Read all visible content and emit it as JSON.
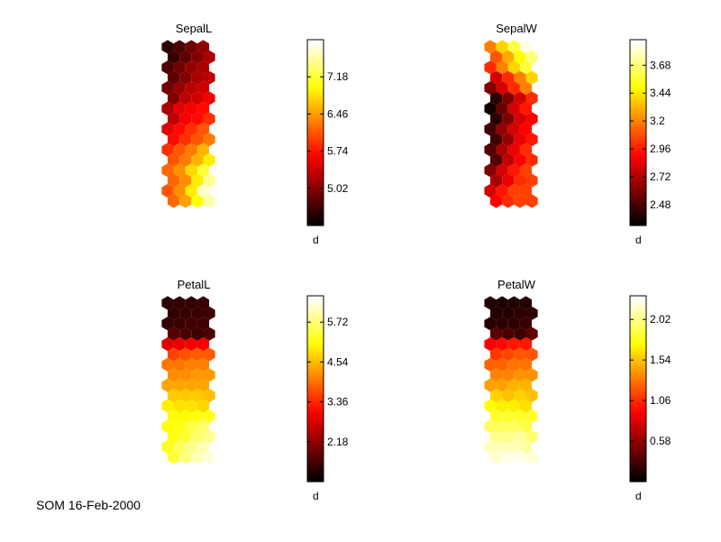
{
  "footer_text": "SOM 16-Feb-2000",
  "chart_data": [
    {
      "type": "heatmap",
      "title": "SepalL",
      "colormap": "hot",
      "grid": {
        "rows": 16,
        "cols": 4,
        "lattice": "hexagonal"
      },
      "colorbar": {
        "label": "d",
        "range": [
          4.3,
          7.9
        ],
        "ticks": [
          5.02,
          5.74,
          6.46,
          7.18
        ]
      },
      "values": [
        [
          4.55,
          4.7,
          4.9,
          5.1
        ],
        [
          4.6,
          4.8,
          5.0,
          5.2
        ],
        [
          4.7,
          4.9,
          5.1,
          5.2
        ],
        [
          4.8,
          5.0,
          5.2,
          5.3
        ],
        [
          4.9,
          5.1,
          5.3,
          5.4
        ],
        [
          5.0,
          5.3,
          5.4,
          5.6
        ],
        [
          5.2,
          5.5,
          5.6,
          5.7
        ],
        [
          5.3,
          5.6,
          5.7,
          5.9
        ],
        [
          5.5,
          5.7,
          5.9,
          6.1
        ],
        [
          5.7,
          5.9,
          6.1,
          6.3
        ],
        [
          5.9,
          6.1,
          6.3,
          6.6
        ],
        [
          6.1,
          6.3,
          6.6,
          6.9
        ],
        [
          6.2,
          6.4,
          6.8,
          7.2
        ],
        [
          6.2,
          6.4,
          6.9,
          7.5
        ],
        [
          6.1,
          6.4,
          6.9,
          7.7
        ],
        [
          6.2,
          6.5,
          7.0,
          7.6
        ]
      ]
    },
    {
      "type": "heatmap",
      "title": "SepalW",
      "colormap": "hot",
      "grid": {
        "rows": 16,
        "cols": 4,
        "lattice": "hexagonal"
      },
      "colorbar": {
        "label": "d",
        "range": [
          2.3,
          3.9
        ],
        "ticks": [
          2.48,
          2.72,
          2.96,
          3.2,
          3.44,
          3.68
        ]
      },
      "values": [
        [
          3.2,
          3.4,
          3.6,
          3.85
        ],
        [
          3.1,
          3.3,
          3.5,
          3.7
        ],
        [
          3.0,
          3.2,
          3.4,
          3.6
        ],
        [
          2.8,
          3.0,
          3.2,
          3.4
        ],
        [
          2.6,
          2.8,
          3.0,
          3.2
        ],
        [
          2.4,
          2.6,
          2.8,
          3.0
        ],
        [
          2.35,
          2.55,
          2.8,
          2.95
        ],
        [
          2.4,
          2.6,
          2.8,
          2.9
        ],
        [
          2.45,
          2.65,
          2.8,
          2.9
        ],
        [
          2.45,
          2.65,
          2.85,
          2.95
        ],
        [
          2.5,
          2.7,
          2.85,
          3.0
        ],
        [
          2.5,
          2.75,
          2.9,
          3.0
        ],
        [
          2.6,
          2.8,
          2.95,
          3.05
        ],
        [
          2.7,
          2.85,
          3.0,
          3.05
        ],
        [
          2.8,
          2.95,
          3.05,
          3.05
        ],
        [
          2.9,
          3.0,
          3.05,
          3.05
        ]
      ]
    },
    {
      "type": "heatmap",
      "title": "PetalL",
      "colormap": "hot",
      "grid": {
        "rows": 16,
        "cols": 4,
        "lattice": "hexagonal"
      },
      "colorbar": {
        "label": "d",
        "range": [
          1.0,
          6.5
        ],
        "ticks": [
          2.18,
          3.36,
          4.54,
          5.72
        ]
      },
      "values": [
        [
          1.35,
          1.4,
          1.4,
          1.45
        ],
        [
          1.4,
          1.45,
          1.45,
          1.5
        ],
        [
          1.4,
          1.45,
          1.5,
          1.5
        ],
        [
          1.7,
          1.6,
          1.5,
          1.6
        ],
        [
          2.8,
          2.9,
          3.0,
          3.0
        ],
        [
          3.6,
          3.7,
          3.8,
          3.8
        ],
        [
          4.0,
          4.0,
          4.1,
          4.1
        ],
        [
          4.2,
          4.2,
          4.3,
          4.3
        ],
        [
          4.4,
          4.4,
          4.4,
          4.4
        ],
        [
          4.7,
          4.7,
          4.7,
          4.6
        ],
        [
          5.0,
          4.9,
          4.9,
          4.8
        ],
        [
          5.1,
          5.1,
          5.2,
          5.3
        ],
        [
          5.2,
          5.2,
          5.5,
          5.7
        ],
        [
          5.2,
          5.4,
          5.7,
          5.9
        ],
        [
          5.3,
          5.6,
          5.9,
          6.1
        ],
        [
          5.4,
          5.8,
          6.1,
          6.3
        ]
      ]
    },
    {
      "type": "heatmap",
      "title": "PetalW",
      "colormap": "hot",
      "grid": {
        "rows": 16,
        "cols": 4,
        "lattice": "hexagonal"
      },
      "colorbar": {
        "label": "d",
        "range": [
          0.1,
          2.3
        ],
        "ticks": [
          0.58,
          1.06,
          1.54,
          2.02
        ]
      },
      "values": [
        [
          0.2,
          0.2,
          0.2,
          0.22
        ],
        [
          0.2,
          0.22,
          0.24,
          0.25
        ],
        [
          0.22,
          0.24,
          0.25,
          0.28
        ],
        [
          0.4,
          0.35,
          0.3,
          0.4
        ],
        [
          0.9,
          0.95,
          1.0,
          1.0
        ],
        [
          1.1,
          1.15,
          1.2,
          1.2
        ],
        [
          1.25,
          1.25,
          1.3,
          1.3
        ],
        [
          1.35,
          1.35,
          1.4,
          1.4
        ],
        [
          1.45,
          1.45,
          1.5,
          1.5
        ],
        [
          1.6,
          1.55,
          1.6,
          1.55
        ],
        [
          1.75,
          1.7,
          1.7,
          1.65
        ],
        [
          1.85,
          1.85,
          1.85,
          1.85
        ],
        [
          1.95,
          1.95,
          1.95,
          1.9
        ],
        [
          2.05,
          2.05,
          2.1,
          2.0
        ],
        [
          2.15,
          2.15,
          2.15,
          2.1
        ],
        [
          2.2,
          2.25,
          2.25,
          2.2
        ]
      ]
    }
  ]
}
